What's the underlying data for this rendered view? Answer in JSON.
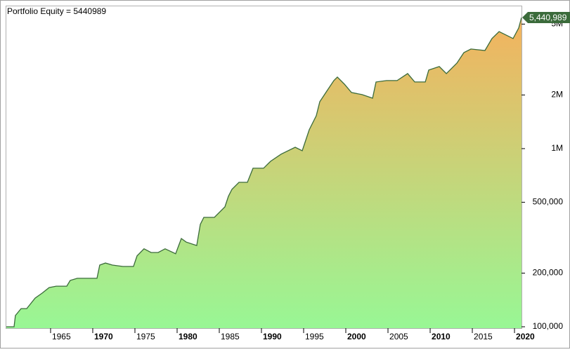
{
  "chart_data": {
    "type": "area",
    "title": "Portfolio Equity = 5440989",
    "log_y": true,
    "xlim": [
      1959.67,
      2020.83
    ],
    "xticks": [
      1965,
      1970,
      1975,
      1980,
      1985,
      1990,
      1995,
      2000,
      2005,
      2010,
      2015,
      2020
    ],
    "ylim": [
      98200,
      6350000
    ],
    "yticks": [
      {
        "value": 100000,
        "label": "100,000"
      },
      {
        "value": 200000,
        "label": "200,000"
      },
      {
        "value": 500000,
        "label": "500,000"
      },
      {
        "value": 1000000,
        "label": "1M"
      },
      {
        "value": 2000000,
        "label": "2M"
      },
      {
        "value": 5000000,
        "label": "5M"
      }
    ],
    "x": [
      1959.67,
      1960.67,
      1960.83,
      1961.5,
      1962.17,
      1963.17,
      1964,
      1964.83,
      1965.67,
      1966.92,
      1967.33,
      1968.17,
      1969,
      1970.5,
      1970.83,
      1971.5,
      1972.33,
      1973.58,
      1974.83,
      1975.25,
      1976.08,
      1976.92,
      1977.75,
      1978.58,
      1979.83,
      1980.5,
      1981.08,
      1982.33,
      1982.75,
      1983.17,
      1984.42,
      1985.67,
      1986.08,
      1986.5,
      1987.33,
      1988.33,
      1989,
      1990.25,
      1991.08,
      1992.33,
      1994,
      1994.83,
      1995.67,
      1996.5,
      1996.92,
      1997.75,
      1998.58,
      1999,
      1999.83,
      2000.67,
      2001.92,
      2003.17,
      2003.58,
      2004.83,
      2006.08,
      2007.33,
      2008.17,
      2009.42,
      2009.83,
      2011.08,
      2011.92,
      2013.17,
      2014,
      2014.83,
      2016.5,
      2017.33,
      2018.17,
      2019,
      2019.83,
      2020.5,
      2020.83
    ],
    "series": [
      {
        "color": "#3b6b3b",
        "fill_colors": [
          "#f4b25e",
          "#98f795"
        ],
        "values": [
          100000,
          100000,
          115600,
          126500,
          126500,
          144900,
          154500,
          166000,
          169000,
          169000,
          182000,
          187000,
          187000,
          187000,
          222000,
          228000,
          222000,
          218000,
          218000,
          250000,
          274000,
          261000,
          261000,
          274000,
          257000,
          313000,
          299000,
          286000,
          376000,
          411000,
          411000,
          471000,
          540000,
          591000,
          647000,
          647000,
          776000,
          776000,
          849000,
          931000,
          1018000,
          973000,
          1277000,
          1531000,
          1835000,
          2103000,
          2409000,
          2521000,
          2302000,
          2065000,
          2010000,
          1920000,
          2366000,
          2409000,
          2409000,
          2638000,
          2366000,
          2366000,
          2760000,
          2890000,
          2638000,
          3020000,
          3460000,
          3622000,
          3556000,
          4150000,
          4540000,
          4345000,
          4150000,
          4755000,
          5440989
        ],
        "value_labels": [
          null,
          null,
          null,
          null,
          null,
          null,
          null,
          null,
          null,
          null,
          null,
          null,
          null,
          null,
          null,
          null,
          null,
          null,
          null,
          null,
          null,
          null,
          null,
          null,
          null,
          null,
          null,
          null,
          null,
          null,
          null,
          null,
          null,
          null,
          null,
          null,
          null,
          null,
          null,
          null,
          null,
          null,
          null,
          null,
          null,
          null,
          null,
          null,
          null,
          null,
          null,
          null,
          null,
          null,
          null,
          null,
          null,
          null,
          null,
          null,
          null,
          null,
          null,
          null,
          null,
          null,
          null,
          null,
          null,
          null,
          "5,440,989"
        ]
      }
    ]
  }
}
